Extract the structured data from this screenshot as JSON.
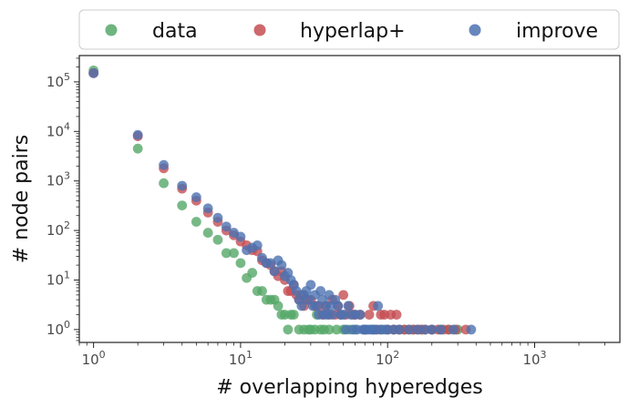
{
  "chart_data": {
    "type": "scatter",
    "xscale": "log",
    "yscale": "log",
    "xlim": [
      0.8,
      3800
    ],
    "ylim": [
      0.55,
      340000
    ],
    "xlabel": "# overlapping hyperedges",
    "ylabel": "# node pairs",
    "grid": false,
    "legend_position": "top",
    "x_ticks": [
      {
        "base": "10",
        "exp": "0"
      },
      {
        "base": "10",
        "exp": "1"
      },
      {
        "base": "10",
        "exp": "2"
      },
      {
        "base": "10",
        "exp": "3"
      }
    ],
    "y_ticks": [
      {
        "base": "10",
        "exp": "0"
      },
      {
        "base": "10",
        "exp": "1"
      },
      {
        "base": "10",
        "exp": "2"
      },
      {
        "base": "10",
        "exp": "3"
      },
      {
        "base": "10",
        "exp": "4"
      },
      {
        "base": "10",
        "exp": "5"
      }
    ],
    "series": [
      {
        "name": "data",
        "color": "#55a868",
        "points": [
          [
            1,
            170000
          ],
          [
            2,
            4500
          ],
          [
            3,
            900
          ],
          [
            4,
            320
          ],
          [
            5,
            150
          ],
          [
            6,
            90
          ],
          [
            7,
            65
          ],
          [
            8,
            35
          ],
          [
            9,
            35
          ],
          [
            10,
            22
          ],
          [
            11,
            11
          ],
          [
            12,
            14
          ],
          [
            13,
            6
          ],
          [
            14,
            6
          ],
          [
            15,
            4
          ],
          [
            16,
            4
          ],
          [
            17,
            4
          ],
          [
            18,
            3
          ],
          [
            19,
            2
          ],
          [
            20,
            2
          ],
          [
            21,
            1
          ],
          [
            22,
            2
          ],
          [
            23,
            2
          ],
          [
            25,
            1
          ],
          [
            27,
            1
          ],
          [
            29,
            1
          ],
          [
            30,
            1
          ],
          [
            32,
            1
          ],
          [
            33,
            2
          ],
          [
            35,
            1
          ],
          [
            37,
            1
          ],
          [
            40,
            1
          ],
          [
            45,
            1
          ],
          [
            50,
            1
          ],
          [
            55,
            1
          ],
          [
            60,
            1
          ],
          [
            70,
            1
          ],
          [
            80,
            1
          ],
          [
            90,
            1
          ],
          [
            100,
            1
          ],
          [
            110,
            1
          ],
          [
            120,
            1
          ],
          [
            130,
            1
          ],
          [
            150,
            1
          ],
          [
            170,
            1
          ],
          [
            200,
            1
          ],
          [
            230,
            1
          ],
          [
            260,
            1
          ],
          [
            300,
            1
          ]
        ]
      },
      {
        "name": "hyperlap+",
        "color": "#c44e52",
        "points": [
          [
            1,
            150000
          ],
          [
            2,
            8000
          ],
          [
            3,
            1800
          ],
          [
            4,
            700
          ],
          [
            5,
            400
          ],
          [
            6,
            230
          ],
          [
            7,
            150
          ],
          [
            8,
            100
          ],
          [
            9,
            80
          ],
          [
            10,
            60
          ],
          [
            11,
            50
          ],
          [
            12,
            40
          ],
          [
            13,
            38
          ],
          [
            14,
            25
          ],
          [
            15,
            22
          ],
          [
            16,
            20
          ],
          [
            17,
            15
          ],
          [
            18,
            12
          ],
          [
            19,
            15
          ],
          [
            20,
            10
          ],
          [
            21,
            6
          ],
          [
            22,
            6
          ],
          [
            23,
            8
          ],
          [
            24,
            5
          ],
          [
            25,
            4
          ],
          [
            26,
            5
          ],
          [
            27,
            3
          ],
          [
            28,
            4
          ],
          [
            30,
            4
          ],
          [
            32,
            3
          ],
          [
            34,
            3
          ],
          [
            36,
            2
          ],
          [
            38,
            3
          ],
          [
            40,
            2
          ],
          [
            42,
            4
          ],
          [
            44,
            2
          ],
          [
            46,
            3
          ],
          [
            48,
            2
          ],
          [
            50,
            5
          ],
          [
            52,
            2
          ],
          [
            55,
            3
          ],
          [
            58,
            2
          ],
          [
            60,
            2
          ],
          [
            65,
            2
          ],
          [
            70,
            1
          ],
          [
            75,
            2
          ],
          [
            80,
            3
          ],
          [
            85,
            1
          ],
          [
            90,
            2
          ],
          [
            95,
            2
          ],
          [
            100,
            1
          ],
          [
            105,
            2
          ],
          [
            110,
            1
          ],
          [
            115,
            2
          ],
          [
            120,
            1
          ],
          [
            130,
            1
          ],
          [
            140,
            1
          ],
          [
            150,
            1
          ],
          [
            160,
            1
          ],
          [
            170,
            1
          ],
          [
            180,
            1
          ],
          [
            200,
            1
          ],
          [
            220,
            1
          ],
          [
            240,
            1
          ],
          [
            260,
            1
          ],
          [
            290,
            1
          ],
          [
            340,
            1
          ]
        ]
      },
      {
        "name": "improve",
        "color": "#4c72b0",
        "points": [
          [
            1,
            150000
          ],
          [
            2,
            8500
          ],
          [
            3,
            2100
          ],
          [
            4,
            800
          ],
          [
            5,
            470
          ],
          [
            6,
            280
          ],
          [
            7,
            180
          ],
          [
            8,
            120
          ],
          [
            9,
            90
          ],
          [
            10,
            75
          ],
          [
            11,
            40
          ],
          [
            12,
            45
          ],
          [
            13,
            50
          ],
          [
            14,
            28
          ],
          [
            15,
            22
          ],
          [
            16,
            22
          ],
          [
            17,
            15
          ],
          [
            18,
            25
          ],
          [
            19,
            20
          ],
          [
            20,
            12
          ],
          [
            21,
            14
          ],
          [
            22,
            10
          ],
          [
            23,
            8
          ],
          [
            24,
            6
          ],
          [
            25,
            4
          ],
          [
            26,
            3
          ],
          [
            27,
            5
          ],
          [
            28,
            6
          ],
          [
            29,
            4
          ],
          [
            30,
            8
          ],
          [
            31,
            3
          ],
          [
            32,
            5
          ],
          [
            33,
            3
          ],
          [
            34,
            2
          ],
          [
            35,
            6
          ],
          [
            36,
            4
          ],
          [
            37,
            2
          ],
          [
            38,
            3
          ],
          [
            39,
            2
          ],
          [
            40,
            5
          ],
          [
            41,
            3
          ],
          [
            42,
            2
          ],
          [
            44,
            4
          ],
          [
            46,
            3
          ],
          [
            48,
            2
          ],
          [
            50,
            2
          ],
          [
            52,
            1
          ],
          [
            54,
            3
          ],
          [
            56,
            2
          ],
          [
            58,
            1
          ],
          [
            60,
            2
          ],
          [
            62,
            1
          ],
          [
            65,
            2
          ],
          [
            68,
            1
          ],
          [
            70,
            1
          ],
          [
            72,
            1
          ],
          [
            75,
            1
          ],
          [
            78,
            1
          ],
          [
            80,
            1
          ],
          [
            83,
            1
          ],
          [
            86,
            3
          ],
          [
            90,
            1
          ],
          [
            95,
            1
          ],
          [
            100,
            1
          ],
          [
            110,
            1
          ],
          [
            120,
            1
          ],
          [
            140,
            1
          ],
          [
            160,
            1
          ],
          [
            180,
            1
          ],
          [
            200,
            1
          ],
          [
            230,
            1
          ],
          [
            280,
            1
          ],
          [
            370,
            1
          ]
        ]
      }
    ]
  }
}
